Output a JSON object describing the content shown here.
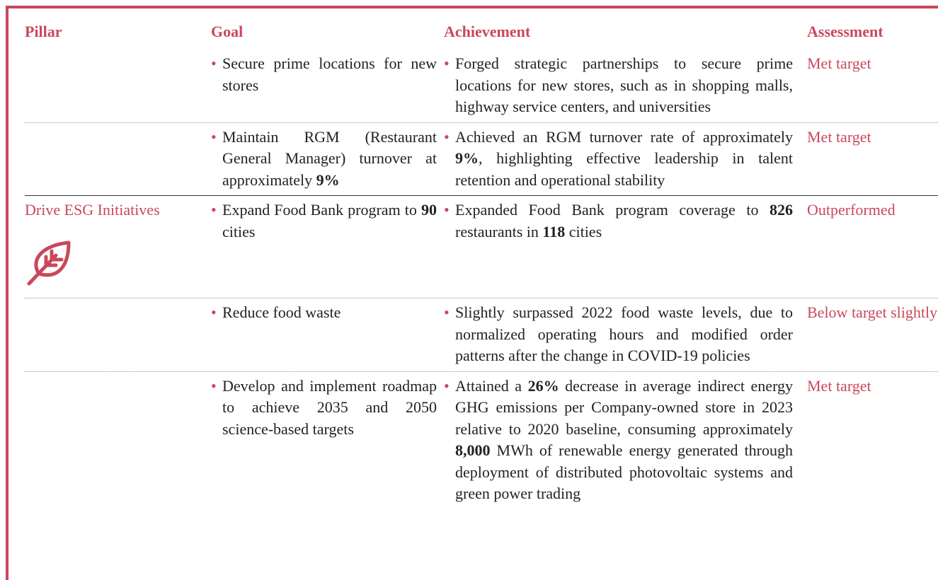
{
  "header": {
    "columns": [
      "Pillar",
      "Goal",
      "Achievement",
      "Assessment"
    ]
  },
  "sections": [
    {
      "rows": [
        {
          "goal": [
            "Secure prime locations for new stores"
          ],
          "achievement": [
            "Forged strategic partnerships to secure prime locations for new stores, such as in shopping malls, highway service centers, and universities"
          ],
          "assessment": "Met target"
        },
        {
          "goal": [
            "Maintain RGM (Restaurant General Manager) turnover at approximately ",
            {
              "text": "9%",
              "bold": true
            }
          ],
          "achievement": [
            "Achieved an RGM turnover rate of approximately ",
            {
              "text": "9%",
              "bold": true
            },
            ", highlighting effective leadership in talent retention and operational stability"
          ],
          "assessment": "Met target"
        }
      ]
    },
    {
      "pillar": "Drive ESG Initiatives",
      "rows": [
        {
          "goal": [
            "Expand Food Bank program to ",
            {
              "text": "90",
              "bold": true
            },
            " cities"
          ],
          "achievement": [
            "Expanded Food Bank program coverage to ",
            {
              "text": "826",
              "bold": true
            },
            " restaurants in ",
            {
              "text": "118",
              "bold": true
            },
            " cities"
          ],
          "assessment": "Outperformed"
        },
        {
          "goal": [
            "Reduce food waste"
          ],
          "achievement": [
            "Slightly surpassed 2022 food waste levels, due to normalized operating hours and modified order patterns after the change in COVID-19 policies"
          ],
          "assessment": "Below target slightly"
        },
        {
          "goal": [
            "Develop and implement roadmap to achieve 2035 and 2050 science-based targets"
          ],
          "achievement": [
            "Attained a ",
            {
              "text": "26%",
              "bold": true
            },
            " decrease in average indirect energy GHG emissions per Company-owned store in 2023 relative to 2020 baseline, consuming approximately ",
            {
              "text": "8,000",
              "bold": true
            },
            " MWh of renewable energy generated through deployment of distributed photovoltaic systems and green power trading"
          ],
          "assessment": "Met target"
        }
      ]
    }
  ]
}
